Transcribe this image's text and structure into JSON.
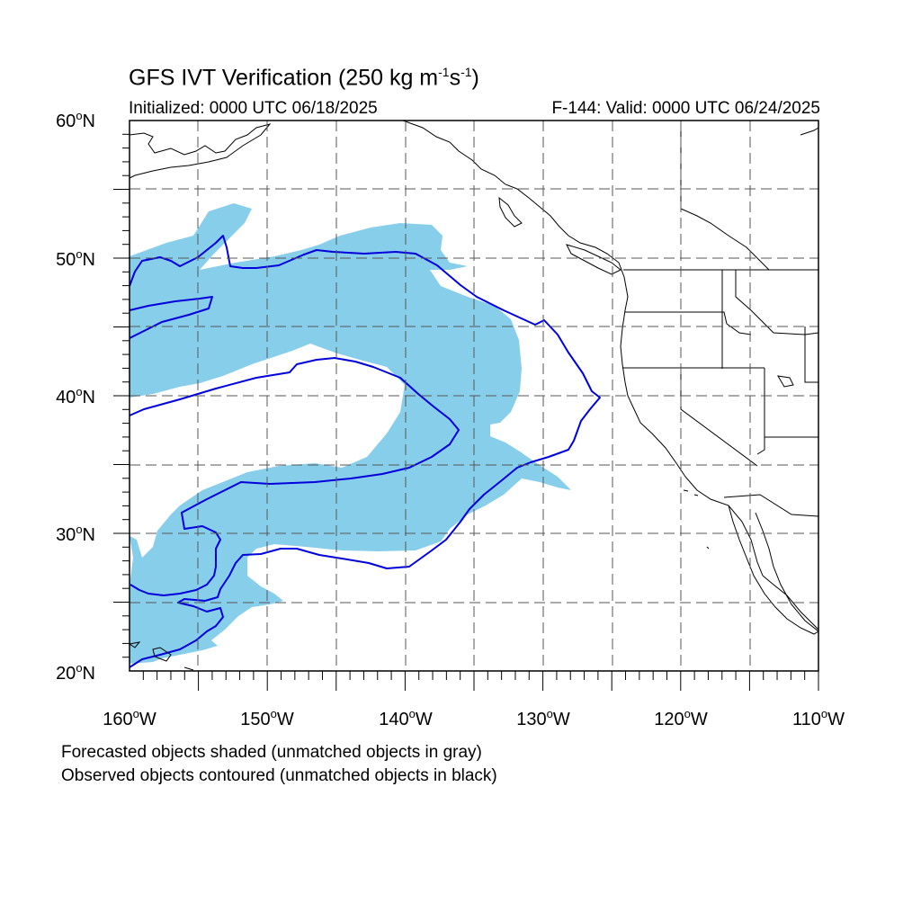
{
  "title": {
    "main": "GFS IVT Verification (250 kg m",
    "exp1": "-1",
    "mid": "s",
    "exp2": "-1",
    "close": ")"
  },
  "initialized": "Initialized: 0000 UTC 06/18/2025",
  "valid": "F-144: Valid: 0000 UTC 06/24/2025",
  "lat_labels": [
    {
      "val": "60",
      "suf": "N"
    },
    {
      "val": "50",
      "suf": "N"
    },
    {
      "val": "40",
      "suf": "N"
    },
    {
      "val": "30",
      "suf": "N"
    },
    {
      "val": "20",
      "suf": "N"
    }
  ],
  "lon_labels": [
    {
      "val": "160",
      "suf": "W"
    },
    {
      "val": "150",
      "suf": "W"
    },
    {
      "val": "140",
      "suf": "W"
    },
    {
      "val": "130",
      "suf": "W"
    },
    {
      "val": "120",
      "suf": "W"
    },
    {
      "val": "110",
      "suf": "W"
    }
  ],
  "degree_symbol": "o",
  "notes": {
    "forecast": "Forecasted objects shaded (unmatched objects in gray)",
    "observed": "Observed objects contoured (unmatched objects in black)"
  },
  "colors": {
    "forecast_fill": "#87ceeb",
    "observed_contour": "#0000dd",
    "coastline": "#000000",
    "gridline": "#555555"
  },
  "map": {
    "projection": "cylindrical-equidistant",
    "lon_range": [
      -160,
      -110
    ],
    "lat_range": [
      20,
      60
    ],
    "grid": true
  }
}
